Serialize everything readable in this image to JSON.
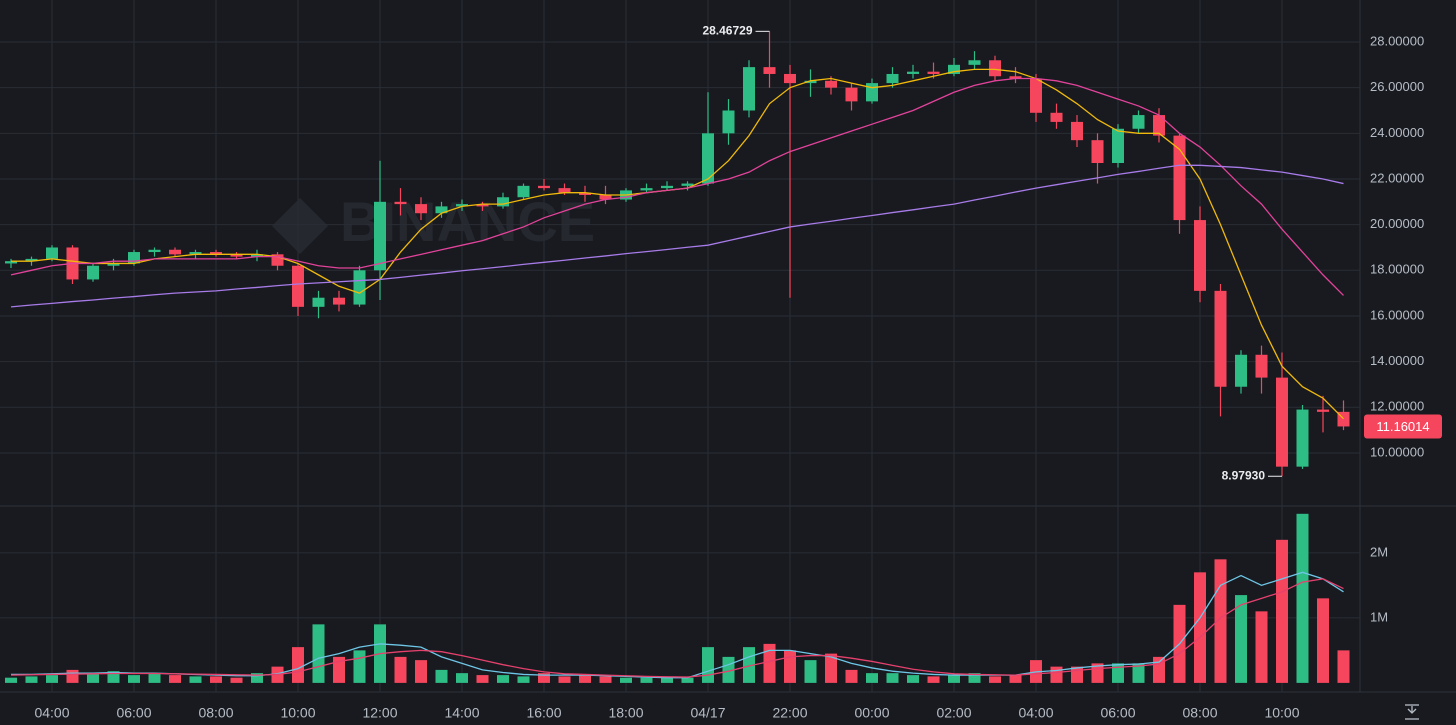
{
  "chart_data": {
    "type": "candlestick",
    "watermark": "BINANCE",
    "categories": [
      null,
      null,
      "04:00",
      null,
      null,
      null,
      "06:00",
      null,
      null,
      null,
      "08:00",
      null,
      null,
      null,
      "10:00",
      null,
      null,
      null,
      "12:00",
      null,
      null,
      null,
      "14:00",
      null,
      null,
      null,
      "16:00",
      null,
      null,
      null,
      "18:00",
      null,
      null,
      null,
      "04/17",
      null,
      null,
      null,
      "22:00",
      null,
      null,
      null,
      "00:00",
      null,
      null,
      null,
      "02:00",
      null,
      null,
      null,
      "04:00",
      null,
      null,
      null,
      "06:00",
      null,
      null,
      null,
      "08:00",
      null,
      null,
      null,
      "10:00",
      null,
      null,
      null
    ],
    "open": [
      18.3,
      18.4,
      18.5,
      19.0,
      17.6,
      18.2,
      18.3,
      18.8,
      18.9,
      18.7,
      18.8,
      18.7,
      18.6,
      18.7,
      18.2,
      16.4,
      16.8,
      16.5,
      18.0,
      21.0,
      20.9,
      20.5,
      20.8,
      20.9,
      20.8,
      21.2,
      21.7,
      21.6,
      21.4,
      21.3,
      21.1,
      21.5,
      21.6,
      21.7,
      21.8,
      24.0,
      25.0,
      26.9,
      26.6,
      26.2,
      26.3,
      26.0,
      25.4,
      26.2,
      26.6,
      26.7,
      26.6,
      27.0,
      27.2,
      26.5,
      26.4,
      24.9,
      24.5,
      23.7,
      22.7,
      24.2,
      24.8,
      23.9,
      20.2,
      17.1,
      12.9,
      14.3,
      13.3,
      9.4,
      11.9,
      11.8
    ],
    "high": [
      18.5,
      18.6,
      19.1,
      19.1,
      18.3,
      18.5,
      18.9,
      19.0,
      19.0,
      18.9,
      18.9,
      18.8,
      18.9,
      18.8,
      18.3,
      17.1,
      17.1,
      18.2,
      22.8,
      21.6,
      21.2,
      21.0,
      21.1,
      21.0,
      21.4,
      21.8,
      22.0,
      21.8,
      21.7,
      21.7,
      21.6,
      21.8,
      21.9,
      21.9,
      25.8,
      25.5,
      27.2,
      28.46729,
      27.0,
      26.8,
      26.5,
      26.2,
      26.4,
      26.9,
      27.0,
      27.1,
      27.3,
      27.6,
      27.4,
      26.9,
      26.6,
      25.3,
      24.8,
      24.0,
      24.4,
      25.0,
      25.1,
      24.0,
      20.8,
      17.4,
      14.5,
      14.7,
      14.4,
      12.1,
      12.5,
      12.3
    ],
    "low": [
      18.1,
      18.2,
      18.4,
      17.4,
      17.5,
      18.0,
      18.2,
      18.6,
      18.6,
      18.5,
      18.6,
      18.5,
      18.4,
      18.0,
      16.0,
      15.9,
      16.2,
      16.4,
      16.7,
      20.4,
      20.2,
      20.3,
      20.6,
      20.6,
      20.7,
      21.1,
      21.5,
      21.3,
      21.0,
      20.9,
      21.0,
      21.4,
      21.5,
      21.5,
      21.7,
      23.5,
      24.7,
      26.0,
      16.8,
      25.6,
      25.7,
      25.0,
      25.3,
      26.0,
      26.4,
      26.4,
      26.5,
      26.8,
      26.3,
      26.2,
      24.5,
      24.2,
      23.4,
      21.8,
      22.5,
      24.0,
      23.6,
      19.6,
      16.6,
      11.6,
      12.6,
      12.6,
      8.9793,
      9.3,
      10.9,
      11.0
    ],
    "close": [
      18.4,
      18.5,
      19.0,
      17.6,
      18.2,
      18.3,
      18.8,
      18.9,
      18.7,
      18.8,
      18.7,
      18.6,
      18.7,
      18.2,
      16.4,
      16.8,
      16.5,
      18.0,
      21.0,
      20.9,
      20.5,
      20.8,
      20.9,
      20.8,
      21.2,
      21.7,
      21.6,
      21.4,
      21.3,
      21.1,
      21.5,
      21.6,
      21.7,
      21.8,
      24.0,
      25.0,
      26.9,
      26.6,
      26.2,
      26.3,
      26.0,
      25.4,
      26.2,
      26.6,
      26.7,
      26.6,
      27.0,
      27.2,
      26.5,
      26.4,
      24.9,
      24.5,
      23.7,
      22.7,
      24.2,
      24.8,
      23.9,
      20.2,
      17.1,
      12.9,
      14.3,
      13.3,
      9.4,
      11.9,
      11.8,
      11.16014
    ],
    "volume": [
      80000,
      100000,
      120000,
      200000,
      150000,
      180000,
      120000,
      150000,
      120000,
      100000,
      100000,
      80000,
      150000,
      250000,
      550000,
      900000,
      400000,
      500000,
      900000,
      400000,
      350000,
      200000,
      150000,
      120000,
      120000,
      100000,
      150000,
      100000,
      120000,
      100000,
      80000,
      80000,
      80000,
      80000,
      550000,
      400000,
      550000,
      600000,
      500000,
      350000,
      450000,
      200000,
      150000,
      150000,
      120000,
      100000,
      120000,
      150000,
      100000,
      120000,
      350000,
      250000,
      250000,
      300000,
      300000,
      300000,
      400000,
      1200000,
      1700000,
      1900000,
      1350000,
      1100000,
      2200000,
      2600000,
      1300000,
      500000
    ],
    "up_color": "#2ebd85",
    "down_color": "#f6465d",
    "annotations": [
      {
        "value": 28.46729,
        "label": "28.46729"
      },
      {
        "value": 8.9793,
        "label": "8.97930"
      }
    ],
    "series": [
      {
        "color": "#f0b90b",
        "values": [
          18.4,
          18.4,
          18.5,
          18.4,
          18.3,
          18.3,
          18.3,
          18.5,
          18.6,
          18.7,
          18.7,
          18.7,
          18.7,
          18.6,
          18.3,
          17.8,
          17.3,
          17.0,
          17.6,
          18.8,
          19.8,
          20.5,
          20.8,
          20.9,
          20.9,
          21.1,
          21.3,
          21.4,
          21.4,
          21.3,
          21.3,
          21.4,
          21.5,
          21.6,
          22.0,
          22.8,
          23.9,
          25.3,
          26.0,
          26.3,
          26.4,
          26.2,
          26.0,
          26.1,
          26.3,
          26.5,
          26.7,
          26.8,
          26.8,
          26.7,
          26.4,
          25.9,
          25.3,
          24.6,
          24.1,
          24.0,
          24.0,
          23.3,
          22.0,
          20.0,
          17.8,
          15.6,
          13.8,
          12.9,
          12.4,
          11.5
        ]
      },
      {
        "color": "#e2439a",
        "values": [
          17.8,
          18.0,
          18.2,
          18.3,
          18.3,
          18.4,
          18.4,
          18.5,
          18.5,
          18.5,
          18.5,
          18.5,
          18.6,
          18.6,
          18.4,
          18.2,
          18.1,
          18.1,
          18.3,
          18.5,
          18.7,
          18.9,
          19.1,
          19.3,
          19.6,
          19.9,
          20.3,
          20.6,
          20.9,
          21.1,
          21.2,
          21.4,
          21.5,
          21.6,
          21.8,
          22.0,
          22.3,
          22.8,
          23.2,
          23.5,
          23.8,
          24.1,
          24.4,
          24.7,
          25.0,
          25.4,
          25.8,
          26.1,
          26.3,
          26.4,
          26.4,
          26.3,
          26.1,
          25.8,
          25.5,
          25.2,
          24.8,
          24.0,
          23.4,
          22.6,
          21.7,
          20.9,
          19.8,
          18.8,
          17.8,
          16.9
        ]
      },
      {
        "color": "#a77be8",
        "values": [
          16.4,
          16.48,
          16.55,
          16.63,
          16.7,
          16.78,
          16.85,
          16.93,
          17.0,
          17.05,
          17.1,
          17.18,
          17.25,
          17.33,
          17.4,
          17.45,
          17.5,
          17.55,
          17.6,
          17.69,
          17.79,
          17.88,
          17.98,
          18.07,
          18.16,
          18.26,
          18.35,
          18.44,
          18.54,
          18.63,
          18.73,
          18.82,
          18.91,
          19.01,
          19.1,
          19.3,
          19.5,
          19.7,
          19.9,
          20.03,
          20.15,
          20.28,
          20.4,
          20.53,
          20.65,
          20.78,
          20.9,
          21.08,
          21.25,
          21.43,
          21.6,
          21.75,
          21.9,
          22.05,
          22.2,
          22.33,
          22.47,
          22.6,
          22.6,
          22.55,
          22.5,
          22.4,
          22.3,
          22.15,
          22.0,
          21.8
        ]
      }
    ],
    "ylim": [
      7.72,
      29.84
    ],
    "yticks": [
      {
        "value": 10,
        "label": "10.00000"
      },
      {
        "value": 12,
        "label": "12.00000"
      },
      {
        "value": 14,
        "label": "14.00000"
      },
      {
        "value": 16,
        "label": "16.00000"
      },
      {
        "value": 18,
        "label": "18.00000"
      },
      {
        "value": 20,
        "label": "20.00000"
      },
      {
        "value": 22,
        "label": "22.00000"
      },
      {
        "value": 24,
        "label": "24.00000"
      },
      {
        "value": 26,
        "label": "26.00000"
      },
      {
        "value": 28,
        "label": "28.00000"
      }
    ],
    "volume_ylim": [
      -140000,
      2720000
    ],
    "volume_yticks": [
      {
        "value": 1000000,
        "label": "1M"
      },
      {
        "value": 2000000,
        "label": "2M"
      }
    ],
    "volume_series": [
      {
        "color": "#6ec6e6",
        "values": [
          130000,
          130000,
          140000,
          150000,
          150000,
          160000,
          150000,
          150000,
          140000,
          130000,
          120000,
          110000,
          110000,
          140000,
          220000,
          380000,
          450000,
          550000,
          600000,
          580000,
          550000,
          400000,
          300000,
          200000,
          160000,
          130000,
          120000,
          120000,
          120000,
          110000,
          100000,
          90000,
          80000,
          80000,
          180000,
          280000,
          400000,
          500000,
          500000,
          450000,
          400000,
          300000,
          230000,
          180000,
          150000,
          130000,
          120000,
          120000,
          120000,
          120000,
          170000,
          190000,
          230000,
          260000,
          280000,
          290000,
          320000,
          600000,
          1000000,
          1500000,
          1650000,
          1500000,
          1600000,
          1700000,
          1600000,
          1400000
        ]
      },
      {
        "color": "#e6416d",
        "values": [
          120000,
          125000,
          130000,
          135000,
          140000,
          145000,
          145000,
          145000,
          140000,
          135000,
          130000,
          125000,
          120000,
          130000,
          170000,
          250000,
          330000,
          380000,
          450000,
          480000,
          500000,
          480000,
          420000,
          350000,
          280000,
          220000,
          170000,
          140000,
          130000,
          120000,
          110000,
          100000,
          95000,
          90000,
          120000,
          180000,
          260000,
          330000,
          400000,
          420000,
          420000,
          380000,
          330000,
          270000,
          210000,
          170000,
          140000,
          130000,
          125000,
          120000,
          140000,
          160000,
          190000,
          220000,
          240000,
          260000,
          290000,
          450000,
          700000,
          1000000,
          1200000,
          1300000,
          1400000,
          1550000,
          1600000,
          1450000
        ]
      }
    ],
    "grid": true
  }
}
